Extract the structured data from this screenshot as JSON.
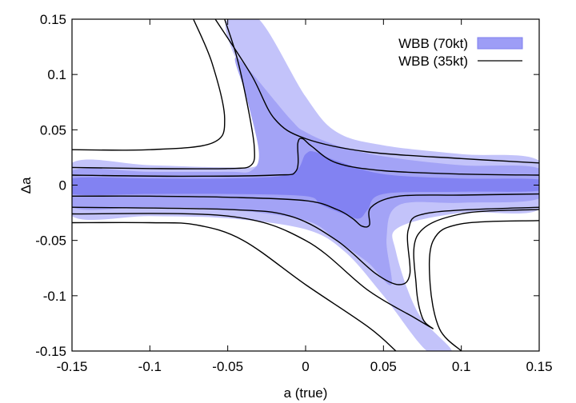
{
  "chart_data": {
    "type": "contour",
    "xlabel": "a (true)",
    "ylabel": "Δa",
    "xlim": [
      -0.15,
      0.15
    ],
    "ylim": [
      -0.15,
      0.15
    ],
    "x_ticks": [
      "-0.15",
      "-0.1",
      "-0.05",
      "0",
      "0.05",
      "0.1",
      "0.15"
    ],
    "y_ticks": [
      "0.15",
      "0.1",
      "0.05",
      "0",
      "-0.05",
      "-0.1",
      "-0.15"
    ],
    "grid": false,
    "legend_position": "top-right",
    "series": [
      {
        "name": "WBB (70kt)",
        "style": "filled",
        "colors": [
          "#c3c3fa",
          "#a3a3f6",
          "#8282f2"
        ],
        "levels": [
          {
            "level": 3,
            "regions": [
              [
                [
                  -0.15,
                  0.02
                ],
                [
                  -0.1,
                  0.018
                ],
                [
                  -0.05,
                  0.016
                ],
                [
                  -0.03,
                  0.018
                ],
                [
                  -0.02,
                  0.035
                ],
                [
                  -0.032,
                  0.08
                ],
                [
                  -0.048,
                  0.125
                ],
                [
                  -0.05,
                  0.15
                ],
                [
                  -0.03,
                  0.15
                ],
                [
                  0.0,
                  0.08
                ],
                [
                  0.02,
                  0.048
                ],
                [
                  0.05,
                  0.036
                ],
                [
                  0.1,
                  0.028
                ],
                [
                  0.15,
                  0.022
                ],
                [
                  0.15,
                  -0.022
                ],
                [
                  0.1,
                  -0.025
                ],
                [
                  0.06,
                  -0.038
                ],
                [
                  0.058,
                  -0.06
                ],
                [
                  0.072,
                  -0.115
                ],
                [
                  0.094,
                  -0.15
                ],
                [
                  0.078,
                  -0.15
                ],
                [
                  0.05,
                  -0.1
                ],
                [
                  0.025,
                  -0.06
                ],
                [
                  0.0,
                  -0.04
                ],
                [
                  -0.05,
                  -0.03
                ],
                [
                  -0.1,
                  -0.028
                ],
                [
                  -0.15,
                  -0.028
                ]
              ]
            ]
          },
          {
            "level": 2,
            "regions": [
              [
                [
                  -0.15,
                  0.013
                ],
                [
                  -0.1,
                  0.012
                ],
                [
                  -0.05,
                  0.012
                ],
                [
                  -0.035,
                  0.013
                ],
                [
                  -0.03,
                  0.03
                ],
                [
                  -0.038,
                  0.08
                ],
                [
                  -0.044,
                  0.115
                ],
                [
                  -0.01,
                  0.06
                ],
                [
                  0.0,
                  0.048
                ],
                [
                  0.02,
                  0.036
                ],
                [
                  0.05,
                  0.026
                ],
                [
                  0.1,
                  0.018
                ],
                [
                  0.15,
                  0.015
                ],
                [
                  0.15,
                  -0.012
                ],
                [
                  0.1,
                  -0.016
                ],
                [
                  0.06,
                  -0.018
                ],
                [
                  0.052,
                  -0.048
                ],
                [
                  0.055,
                  -0.09
                ],
                [
                  0.04,
                  -0.07
                ],
                [
                  0.02,
                  -0.05
                ],
                [
                  0.0,
                  -0.032
                ],
                [
                  -0.05,
                  -0.022
                ],
                [
                  -0.1,
                  -0.02
                ],
                [
                  -0.15,
                  -0.02
                ]
              ]
            ]
          },
          {
            "level": 1,
            "regions": [
              [
                [
                  -0.15,
                  0.006
                ],
                [
                  -0.1,
                  0.006
                ],
                [
                  -0.05,
                  0.006
                ],
                [
                  -0.01,
                  0.01
                ],
                [
                  0.0,
                  0.028
                ],
                [
                  0.006,
                  0.03
                ],
                [
                  0.02,
                  0.022
                ],
                [
                  0.05,
                  0.01
                ],
                [
                  0.1,
                  0.006
                ],
                [
                  0.15,
                  0.005
                ],
                [
                  0.15,
                  -0.005
                ],
                [
                  0.1,
                  -0.006
                ],
                [
                  0.05,
                  -0.008
                ],
                [
                  0.04,
                  -0.022
                ],
                [
                  0.035,
                  -0.03
                ],
                [
                  0.028,
                  -0.028
                ],
                [
                  0.01,
                  -0.018
                ],
                [
                  0.0,
                  -0.01
                ],
                [
                  -0.05,
                  -0.008
                ],
                [
                  -0.1,
                  -0.008
                ],
                [
                  -0.15,
                  -0.008
                ]
              ]
            ]
          }
        ]
      },
      {
        "name": "WBB (35kt)",
        "style": "line",
        "color": "#000000",
        "curves": [
          [
            [
              -0.15,
              0.032
            ],
            [
              -0.1,
              0.032
            ],
            [
              -0.06,
              0.038
            ],
            [
              -0.052,
              0.06
            ],
            [
              -0.06,
              0.11
            ],
            [
              -0.072,
              0.15
            ]
          ],
          [
            [
              -0.058,
              0.15
            ],
            [
              -0.035,
              0.1
            ],
            [
              -0.02,
              0.06
            ],
            [
              0.0,
              0.042
            ],
            [
              0.04,
              0.03
            ],
            [
              0.1,
              0.024
            ],
            [
              0.15,
              0.02
            ]
          ],
          [
            [
              -0.15,
              0.016
            ],
            [
              -0.1,
              0.015
            ],
            [
              -0.05,
              0.015
            ],
            [
              -0.035,
              0.018
            ],
            [
              -0.033,
              0.035
            ],
            [
              -0.037,
              0.07
            ],
            [
              -0.044,
              0.115
            ],
            [
              -0.052,
              0.15
            ]
          ],
          [
            [
              -0.15,
              0.009
            ],
            [
              -0.08,
              0.008
            ],
            [
              -0.02,
              0.009
            ],
            [
              -0.006,
              0.013
            ],
            [
              -0.005,
              0.038
            ],
            [
              -0.002,
              0.042
            ],
            [
              0.004,
              0.035
            ],
            [
              0.02,
              0.02
            ],
            [
              0.05,
              0.013
            ],
            [
              0.1,
              0.01
            ],
            [
              0.15,
              0.009
            ]
          ],
          [
            [
              -0.15,
              -0.01
            ],
            [
              -0.1,
              -0.01
            ],
            [
              -0.05,
              -0.011
            ],
            [
              0.0,
              -0.014
            ],
            [
              0.02,
              -0.022
            ],
            [
              0.03,
              -0.03
            ],
            [
              0.036,
              -0.037
            ],
            [
              0.041,
              -0.036
            ],
            [
              0.042,
              -0.02
            ],
            [
              0.06,
              -0.01
            ],
            [
              0.1,
              -0.009
            ],
            [
              0.15,
              -0.008
            ]
          ],
          [
            [
              -0.15,
              -0.02
            ],
            [
              -0.05,
              -0.022
            ],
            [
              -0.01,
              -0.028
            ],
            [
              0.02,
              -0.05
            ],
            [
              0.045,
              -0.08
            ],
            [
              0.06,
              -0.09
            ],
            [
              0.067,
              -0.08
            ],
            [
              0.066,
              -0.04
            ],
            [
              0.08,
              -0.025
            ],
            [
              0.15,
              -0.02
            ]
          ],
          [
            [
              -0.15,
              -0.034
            ],
            [
              -0.1,
              -0.034
            ],
            [
              -0.07,
              -0.036
            ],
            [
              -0.04,
              -0.05
            ],
            [
              0.0,
              -0.09
            ],
            [
              0.04,
              -0.128
            ],
            [
              0.058,
              -0.15
            ]
          ],
          [
            [
              0.1,
              -0.15
            ],
            [
              0.086,
              -0.13
            ],
            [
              0.08,
              -0.09
            ],
            [
              0.082,
              -0.05
            ],
            [
              0.1,
              -0.035
            ],
            [
              0.15,
              -0.032
            ]
          ],
          [
            [
              0.082,
              -0.13
            ],
            [
              0.075,
              -0.12
            ],
            [
              0.071,
              -0.09
            ],
            [
              0.072,
              -0.045
            ],
            [
              0.1,
              -0.026
            ],
            [
              0.15,
              -0.022
            ]
          ],
          [
            [
              -0.15,
              -0.026
            ],
            [
              -0.05,
              -0.028
            ],
            [
              0.0,
              -0.05
            ],
            [
              0.04,
              -0.095
            ],
            [
              0.07,
              -0.12
            ],
            [
              0.082,
              -0.13
            ]
          ]
        ]
      }
    ]
  }
}
